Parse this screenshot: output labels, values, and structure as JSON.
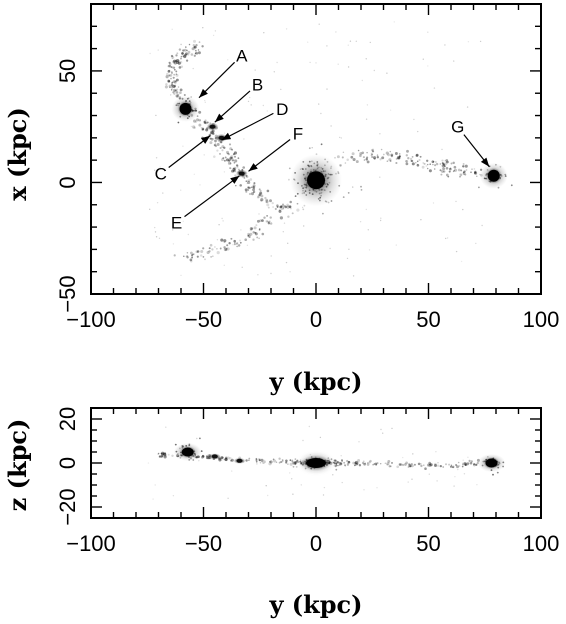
{
  "chart_data": [
    {
      "type": "scatter",
      "panel": "top",
      "xlabel": "y (kpc)",
      "ylabel": "x (kpc)",
      "xlim": [
        -100,
        100
      ],
      "ylim": [
        -50,
        80
      ],
      "xticks": [
        -100,
        -50,
        0,
        50,
        100
      ],
      "yticks": [
        -50,
        0,
        50
      ],
      "grid": false,
      "blobs": [
        {
          "x": 0,
          "y": 1,
          "size": "large"
        },
        {
          "x": -58,
          "y": 33,
          "size": "medium"
        },
        {
          "x": 79,
          "y": 3,
          "size": "medium"
        },
        {
          "x": -33,
          "y": 4,
          "size": "small"
        },
        {
          "x": -46,
          "y": 25,
          "size": "small"
        },
        {
          "x": -42,
          "y": 20,
          "size": "small"
        }
      ],
      "tidal_features": {
        "arc_upper": [
          [
            -60,
            38
          ],
          [
            -65,
            45
          ],
          [
            -64,
            53
          ],
          [
            -58,
            58
          ],
          [
            -52,
            60
          ]
        ],
        "bridge": [
          [
            -55,
            30
          ],
          [
            -48,
            25
          ],
          [
            -43,
            18
          ],
          [
            -38,
            11
          ],
          [
            -34,
            5
          ],
          [
            -28,
            -3
          ],
          [
            -20,
            -10
          ],
          [
            -10,
            -12
          ]
        ],
        "tail_east": [
          [
            10,
            10
          ],
          [
            25,
            13
          ],
          [
            40,
            11
          ],
          [
            52,
            8
          ],
          [
            62,
            6
          ],
          [
            72,
            4
          ]
        ],
        "halo_south": [
          [
            -20,
            -15
          ],
          [
            -30,
            -25
          ],
          [
            -45,
            -30
          ],
          [
            -60,
            -35
          ]
        ]
      },
      "annotations": [
        {
          "label": "A",
          "text_x": -33,
          "text_y": 57,
          "point_x": -52,
          "point_y": 38
        },
        {
          "label": "B",
          "text_x": -26,
          "text_y": 44,
          "point_x": -45,
          "point_y": 27
        },
        {
          "label": "C",
          "text_x": -69,
          "text_y": 4,
          "point_x": -47,
          "point_y": 21
        },
        {
          "label": "D",
          "text_x": -15,
          "text_y": 33,
          "point_x": -42,
          "point_y": 19
        },
        {
          "label": "E",
          "text_x": -62,
          "text_y": -18,
          "point_x": -34,
          "point_y": 3
        },
        {
          "label": "F",
          "text_x": -8,
          "text_y": 22,
          "point_x": -30,
          "point_y": 5
        },
        {
          "label": "G",
          "text_x": 63,
          "text_y": 25,
          "point_x": 77,
          "point_y": 7
        }
      ]
    },
    {
      "type": "scatter",
      "panel": "bottom",
      "xlabel": "y (kpc)",
      "ylabel": "z (kpc)",
      "xlim": [
        -100,
        100
      ],
      "ylim": [
        -25,
        25
      ],
      "xticks": [
        -100,
        -50,
        0,
        50,
        100
      ],
      "yticks": [
        -20,
        0,
        20
      ],
      "grid": false,
      "blobs": [
        {
          "x": 0,
          "y": 0,
          "size": "large"
        },
        {
          "x": -57,
          "y": 5,
          "size": "medium"
        },
        {
          "x": 78,
          "y": 0,
          "size": "medium"
        },
        {
          "x": -34,
          "y": 1,
          "size": "small"
        },
        {
          "x": -45,
          "y": 3,
          "size": "small"
        }
      ],
      "tidal_features": {
        "plane": [
          [
            -70,
            4
          ],
          [
            -55,
            3
          ],
          [
            -40,
            2
          ],
          [
            -20,
            1
          ],
          [
            0,
            0
          ],
          [
            20,
            0
          ],
          [
            40,
            -1
          ],
          [
            60,
            -1
          ],
          [
            75,
            0
          ]
        ]
      }
    }
  ]
}
